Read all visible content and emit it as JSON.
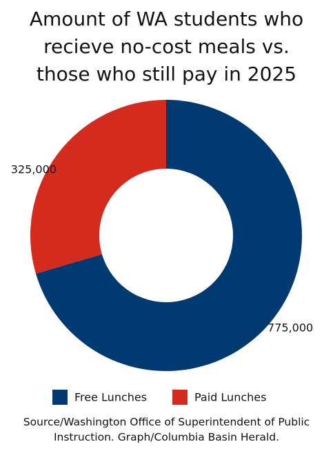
{
  "chart_data": {
    "type": "donut",
    "title": "Amount of WA students who recieve no-cost meals vs. those who still pay in 2025",
    "series": [
      {
        "name": "Free Lunches",
        "color": "#003a70",
        "values": [
          775000
        ],
        "value_labels": [
          "775,000"
        ]
      },
      {
        "name": "Paid Lunches",
        "color": "#d52b1e",
        "values": [
          325000
        ],
        "value_labels": [
          "325,000"
        ]
      }
    ],
    "source": "Source/Washington Office of Superintendent of Public Instruction. Graph/Columbia Basin Herald."
  }
}
